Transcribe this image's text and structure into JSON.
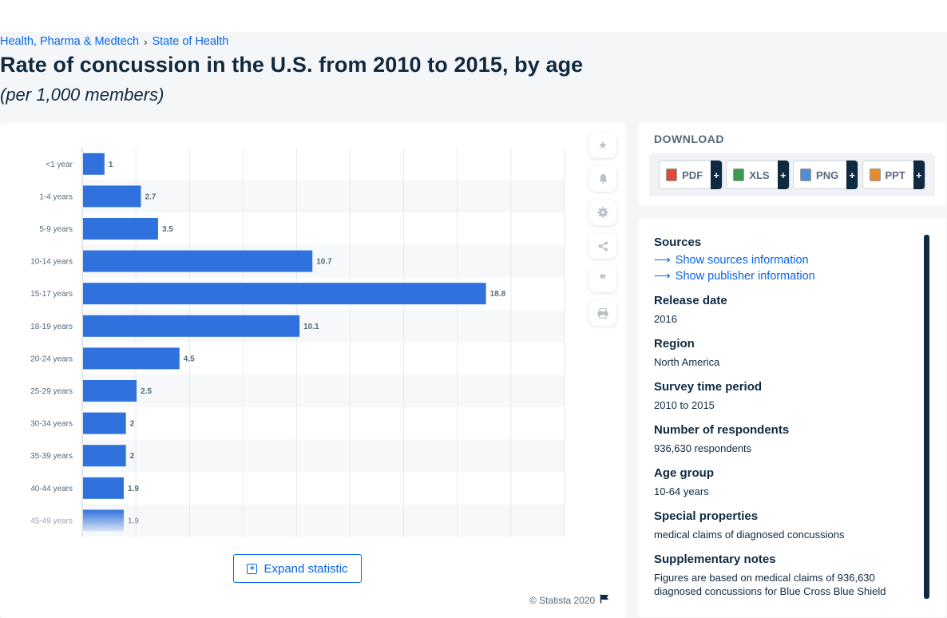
{
  "breadcrumb": {
    "item1": "Health, Pharma & Medtech",
    "item2": "State of Health"
  },
  "page": {
    "title": "Rate of concussion in the U.S. from 2010 to 2015, by age",
    "subtitle": "(per 1,000 members)"
  },
  "chart_data": {
    "type": "bar",
    "orientation": "horizontal",
    "categories": [
      "<1 year",
      "1-4 years",
      "5-9 years",
      "10-14 years",
      "15-17 years",
      "18-19 years",
      "20-24 years",
      "25-29 years",
      "30-34 years",
      "35-39 years",
      "40-44 years",
      "45-49 years"
    ],
    "values": [
      1,
      2.7,
      3.5,
      10.7,
      18.8,
      10.1,
      4.5,
      2.5,
      2,
      2,
      1.9,
      1.9
    ],
    "xlim": [
      0,
      22.5
    ],
    "grid": true,
    "bar_color": "#2f72dd"
  },
  "toolbar": {
    "icons": [
      "star-icon",
      "bell-icon",
      "gear-icon",
      "share-icon",
      "quote-icon",
      "print-icon"
    ]
  },
  "expand_label": "Expand statistic",
  "copyright": "© Statista 2020",
  "download": {
    "title": "DOWNLOAD",
    "buttons": [
      "PDF",
      "XLS",
      "PNG",
      "PPT"
    ],
    "plus": "+"
  },
  "info": {
    "sources_h": "Sources",
    "show_sources": "Show sources information",
    "show_publisher": "Show publisher information",
    "release_h": "Release date",
    "release_v": "2016",
    "region_h": "Region",
    "region_v": "North America",
    "survey_h": "Survey time period",
    "survey_v": "2010 to 2015",
    "respondents_h": "Number of respondents",
    "respondents_v": "936,630 respondents",
    "age_h": "Age group",
    "age_v": "10-64 years",
    "special_h": "Special properties",
    "special_v": "medical claims of diagnosed concussions",
    "supp_h": "Supplementary notes",
    "supp_v": "Figures are based on medical claims of 936,630 diagnosed concussions for Blue Cross Blue Shield"
  }
}
